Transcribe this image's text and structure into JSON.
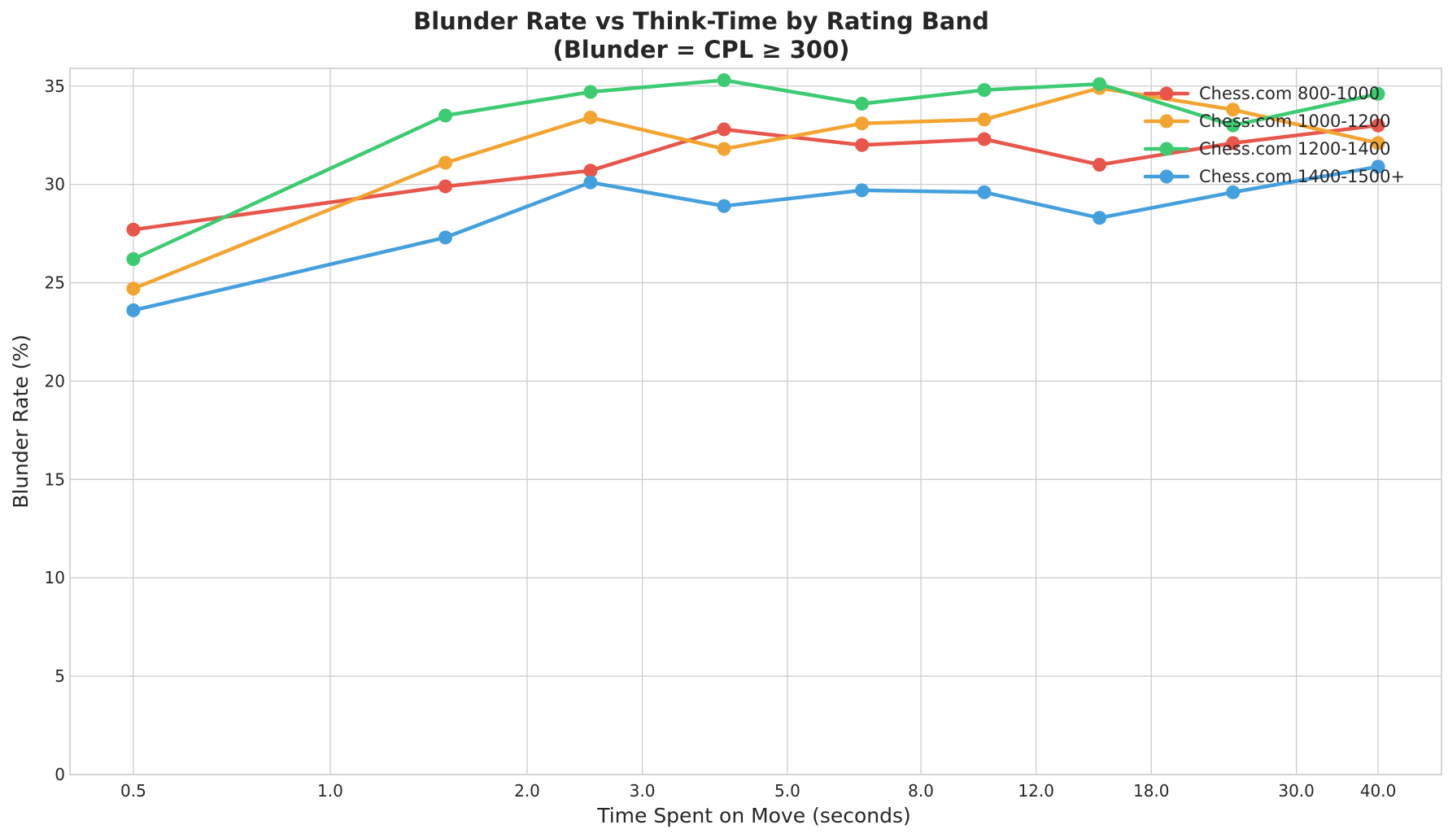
{
  "chart_data": {
    "type": "line",
    "title": "Blunder Rate vs Think-Time by Rating Band",
    "subtitle": "(Blunder = CPL ≥ 300)",
    "xlabel": "Time Spent on Move (seconds)",
    "ylabel": "Blunder Rate (%)",
    "x_scale": "log",
    "xlim": [
      0.4,
      50
    ],
    "ylim": [
      0,
      35.9
    ],
    "x_ticks": [
      0.5,
      1.0,
      2.0,
      3.0,
      5.0,
      8.0,
      12.0,
      18.0,
      30.0,
      40.0
    ],
    "x_tick_labels": [
      "0.5",
      "1.0",
      "2.0",
      "3.0",
      "5.0",
      "8.0",
      "12.0",
      "18.0",
      "30.0",
      "40.0"
    ],
    "y_ticks": [
      0,
      5,
      10,
      15,
      20,
      25,
      30,
      35
    ],
    "y_tick_labels": [
      "0",
      "5",
      "10",
      "15",
      "20",
      "25",
      "30",
      "35"
    ],
    "grid": true,
    "legend_position": "top-right",
    "x": [
      0.5,
      1.5,
      2.5,
      4.0,
      6.5,
      10.0,
      15.0,
      24.0,
      40.0
    ],
    "series": [
      {
        "name": "Chess.com 800-1000",
        "color": "#e8554a",
        "values": [
          27.7,
          29.9,
          30.7,
          32.8,
          32.0,
          32.3,
          31.0,
          32.1,
          33.0
        ]
      },
      {
        "name": "Chess.com 1000-1200",
        "color": "#f3a430",
        "values": [
          24.7,
          31.1,
          33.4,
          31.8,
          33.1,
          33.3,
          34.9,
          33.8,
          32.1
        ]
      },
      {
        "name": "Chess.com 1200-1400",
        "color": "#3dcb72",
        "values": [
          26.2,
          33.5,
          34.7,
          35.3,
          34.1,
          34.8,
          35.1,
          33.0,
          34.6
        ]
      },
      {
        "name": "Chess.com 1400-1500+",
        "color": "#449fdd",
        "values": [
          23.6,
          27.3,
          30.1,
          28.9,
          29.7,
          29.6,
          28.3,
          29.6,
          30.9
        ]
      }
    ]
  }
}
